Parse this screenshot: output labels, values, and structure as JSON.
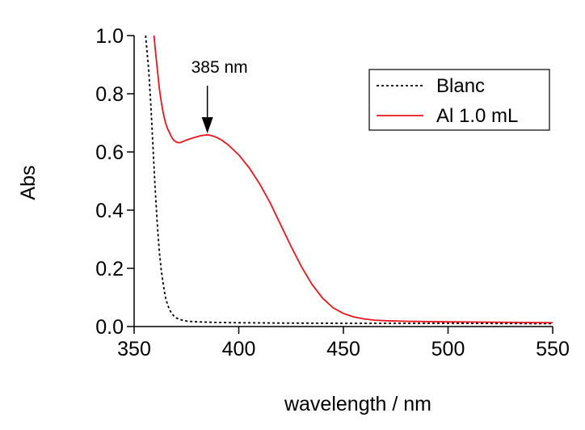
{
  "chart_data": {
    "type": "line",
    "title": "",
    "xlabel": "wavelength / nm",
    "ylabel": "Abs",
    "xlim": [
      350,
      550
    ],
    "ylim": [
      0.0,
      1.0
    ],
    "x_ticks": [
      350,
      400,
      450,
      500,
      550
    ],
    "x_tick_labels": [
      "350",
      "400",
      "450",
      "500",
      "550"
    ],
    "y_ticks": [
      0.0,
      0.2,
      0.4,
      0.6,
      0.8,
      1.0
    ],
    "y_tick_labels": [
      "0.0",
      "0.2",
      "0.4",
      "0.6",
      "0.8",
      "1.0"
    ],
    "grid": false,
    "legend_position": "top-right",
    "series": [
      {
        "name": "Blanc",
        "color": "#000000",
        "dash": "dotted",
        "x": [
          355.5,
          356,
          357,
          358,
          359,
          360,
          361,
          362,
          363,
          364,
          365,
          366,
          367,
          368,
          369,
          370,
          372,
          374,
          376,
          378,
          380,
          385,
          390,
          400,
          420,
          450,
          500,
          550
        ],
        "y": [
          1.0,
          0.96,
          0.88,
          0.76,
          0.62,
          0.48,
          0.36,
          0.26,
          0.19,
          0.14,
          0.1,
          0.075,
          0.057,
          0.045,
          0.036,
          0.03,
          0.024,
          0.02,
          0.018,
          0.017,
          0.016,
          0.015,
          0.014,
          0.013,
          0.012,
          0.011,
          0.011,
          0.01
        ]
      },
      {
        "name": "Al 1.0 mL",
        "color": "#e8141e",
        "dash": "solid",
        "x": [
          359.5,
          360,
          361,
          362,
          363,
          364,
          365,
          366,
          367,
          368,
          369,
          370,
          371,
          372,
          374,
          376,
          378,
          380,
          382,
          384,
          385,
          386,
          388,
          390,
          392,
          395,
          400,
          405,
          410,
          415,
          420,
          425,
          430,
          435,
          440,
          445,
          450,
          455,
          460,
          465,
          470,
          480,
          490,
          500,
          520,
          550
        ],
        "y": [
          1.0,
          0.96,
          0.89,
          0.82,
          0.77,
          0.73,
          0.7,
          0.68,
          0.665,
          0.65,
          0.64,
          0.635,
          0.632,
          0.632,
          0.638,
          0.643,
          0.648,
          0.652,
          0.656,
          0.658,
          0.659,
          0.658,
          0.654,
          0.648,
          0.64,
          0.624,
          0.59,
          0.545,
          0.49,
          0.425,
          0.35,
          0.275,
          0.205,
          0.145,
          0.098,
          0.065,
          0.045,
          0.033,
          0.026,
          0.022,
          0.02,
          0.018,
          0.017,
          0.016,
          0.015,
          0.013
        ]
      }
    ],
    "annotations": [
      {
        "text": "385 nm",
        "arrow_x": 385,
        "arrow_y": 0.664
      }
    ]
  }
}
